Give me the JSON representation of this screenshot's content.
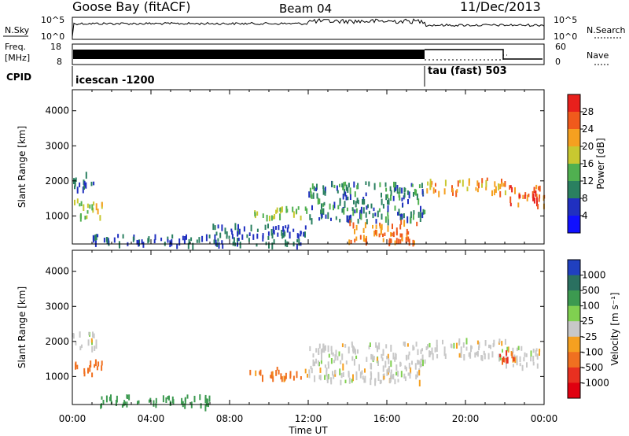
{
  "header": {
    "station": "Goose Bay (fitACF)",
    "beam": "Beam 04",
    "date": "11/Dec/2013"
  },
  "panels": {
    "noise": {
      "left_label": "N.Sky",
      "right_label": "N.Search",
      "left_ticks": [
        "10^5",
        "10^0"
      ],
      "right_ticks": [
        "10^5",
        "10^0"
      ]
    },
    "freq": {
      "left_label_line1": "Freq.",
      "left_label_line2": "[MHz]",
      "right_label": "Nave",
      "left_ticks": [
        "18",
        "8"
      ],
      "right_ticks": [
        "60",
        "0"
      ]
    },
    "cpid": {
      "label": "CPID",
      "modes": [
        {
          "text": "icescan -1200",
          "start_hour": 0
        },
        {
          "text": "tau (fast) 503",
          "start_hour": 18
        }
      ]
    }
  },
  "power_scale": {
    "label": "Power [dB]",
    "ticks": [
      "28",
      "24",
      "20",
      "16",
      "12",
      "8",
      "4"
    ],
    "colors": [
      "#e8201c",
      "#f05a1c",
      "#f5a020",
      "#c8c830",
      "#50b050",
      "#2a8060",
      "#2030c0",
      "#1010ff"
    ]
  },
  "velocity_scale": {
    "label": "Velocity [m s⁻¹]",
    "ticks": [
      "1000",
      "500",
      "100",
      "25",
      "-25",
      "-100",
      "-500",
      "-1000"
    ],
    "colors": [
      "#2040c0",
      "#2a7060",
      "#3c9a50",
      "#80d050",
      "#c8c8c8",
      "#f5a020",
      "#f07020",
      "#e83020",
      "#e00010"
    ]
  },
  "chart_data": [
    {
      "type": "heatmap",
      "title": "Power",
      "ylabel": "Slant Range [km]",
      "xlabel": "Time UT",
      "x_ticks": [
        "00:00",
        "04:00",
        "08:00",
        "12:00",
        "16:00",
        "20:00",
        "00:00"
      ],
      "y_ticks": [
        1000,
        2000,
        3000,
        4000
      ],
      "xlim": [
        0,
        24
      ],
      "ylim": [
        200,
        4600
      ],
      "scatter_regions": [
        {
          "t": [
            0.0,
            1.5
          ],
          "r": [
            1000,
            1500
          ],
          "value_db": 16
        },
        {
          "t": [
            0.0,
            1.2
          ],
          "r": [
            1800,
            2300
          ],
          "value_db": 6
        },
        {
          "t": [
            1.0,
            7.0
          ],
          "r": [
            200,
            500
          ],
          "value_db": 6
        },
        {
          "t": [
            7.0,
            12.0
          ],
          "r": [
            200,
            800
          ],
          "value_db": 6
        },
        {
          "t": [
            9.0,
            12.0
          ],
          "r": [
            1000,
            1300
          ],
          "value_db": 14
        },
        {
          "t": [
            12.0,
            18.0
          ],
          "r": [
            900,
            2000
          ],
          "value_db": 8
        },
        {
          "t": [
            14.0,
            17.5
          ],
          "r": [
            300,
            900
          ],
          "value_db": 22
        },
        {
          "t": [
            18.0,
            22.0
          ],
          "r": [
            1700,
            2100
          ],
          "value_db": 20
        },
        {
          "t": [
            22.0,
            24.0
          ],
          "r": [
            1300,
            1900
          ],
          "value_db": 24
        }
      ]
    },
    {
      "type": "heatmap",
      "title": "Velocity",
      "ylabel": "Slant Range [km]",
      "xlabel": "Time UT",
      "x_ticks": [
        "00:00",
        "04:00",
        "08:00",
        "12:00",
        "16:00",
        "20:00",
        "00:00"
      ],
      "y_ticks": [
        1000,
        2000,
        3000,
        4000
      ],
      "xlim": [
        0,
        24
      ],
      "ylim": [
        200,
        4600
      ],
      "scatter_regions": [
        {
          "t": [
            0.0,
            1.2
          ],
          "r": [
            1800,
            2300
          ],
          "value_ms": 0
        },
        {
          "t": [
            0.0,
            1.5
          ],
          "r": [
            1100,
            1500
          ],
          "value_ms": -100
        },
        {
          "t": [
            1.0,
            7.0
          ],
          "r": [
            200,
            500
          ],
          "value_ms": 200
        },
        {
          "t": [
            9.0,
            12.0
          ],
          "r": [
            1000,
            1300
          ],
          "value_ms": -80
        },
        {
          "t": [
            12.0,
            18.0
          ],
          "r": [
            900,
            2000
          ],
          "value_ms": 0
        },
        {
          "t": [
            18.0,
            22.0
          ],
          "r": [
            1600,
            2100
          ],
          "value_ms": 0
        },
        {
          "t": [
            22.0,
            24.0
          ],
          "r": [
            1300,
            1900
          ],
          "value_ms": 0
        },
        {
          "t": [
            21.5,
            22.5
          ],
          "r": [
            1500,
            1800
          ],
          "value_ms": -300
        }
      ]
    }
  ]
}
